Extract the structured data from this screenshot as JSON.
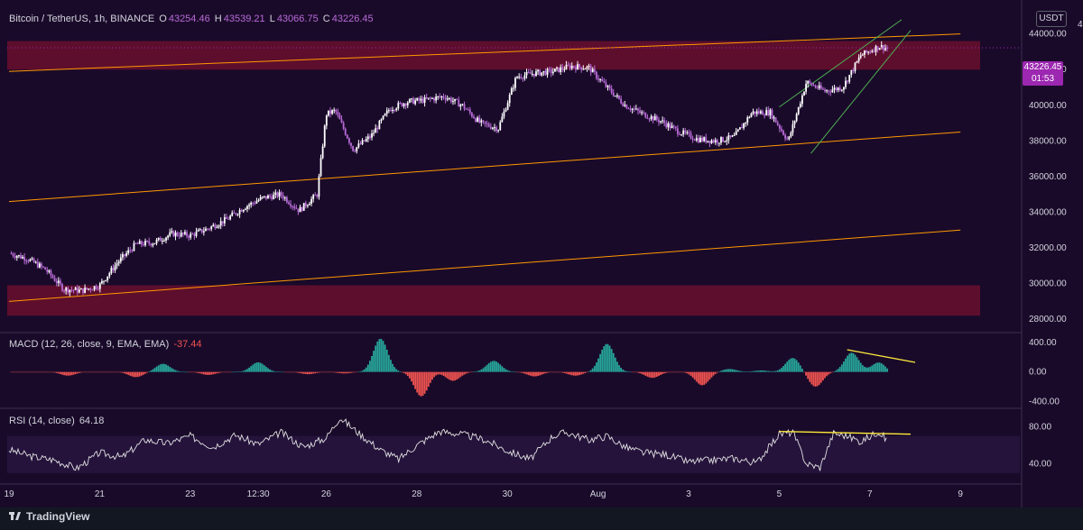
{
  "header": {
    "symbol": "Bitcoin / TetherUS, 1h, BINANCE",
    "open_label": "O",
    "open": "43254.46",
    "high_label": "H",
    "high": "43539.21",
    "low_label": "L",
    "low": "43066.75",
    "close_label": "C",
    "close": "43226.45"
  },
  "currency_button": "USDT",
  "last_price": "43226.45",
  "countdown": "01:53",
  "macd_header": {
    "label": "MACD (12, 26, close, 9, EMA, EMA)",
    "value": "-37.44"
  },
  "rsi_header": {
    "label": "RSI (14, close)",
    "value": "64.18"
  },
  "footer": {
    "brand": "TradingView"
  },
  "colors": {
    "background": "#1a0a2a",
    "candle": "#b76bd6",
    "resistance_zone": "#6b0f2e",
    "channel_line": "#ff9800",
    "wedge_line": "#4caf50",
    "macd_pos": "#26a69a",
    "macd_neg": "#ef5350",
    "divergence_line": "#ffeb3b",
    "price_box": "#9c27b0"
  },
  "chart_data": [
    {
      "type": "candlestick",
      "title": "Bitcoin / TetherUS, 1h, BINANCE",
      "y_ticks": [
        28000,
        30000,
        32000,
        34000,
        36000,
        38000,
        40000,
        42000,
        44000
      ],
      "y_tick_labels": [
        "28000.00",
        "30000.00",
        "32000.00",
        "34000.00",
        "36000.00",
        "38000.00",
        "40000.00",
        "42000.00",
        "44000.00"
      ],
      "ylim": [
        27300,
        45500
      ],
      "x_labels": [
        "19",
        "21",
        "23",
        "12:30",
        "26",
        "28",
        "30",
        "Aug",
        "3",
        "5",
        "7",
        "9"
      ],
      "x_label_pos": [
        0,
        2,
        4,
        5.5,
        7,
        9,
        11,
        13,
        15,
        17,
        19,
        21
      ],
      "close_series": {
        "t": [
          0,
          0.4,
          0.8,
          1.2,
          1.6,
          2.0,
          2.4,
          2.8,
          3.2,
          3.6,
          4.0,
          4.4,
          4.8,
          5.2,
          5.6,
          6.0,
          6.4,
          6.8,
          7.0,
          7.2,
          7.6,
          8.0,
          8.4,
          8.8,
          9.2,
          9.6,
          10.0,
          10.4,
          10.8,
          11.2,
          11.6,
          12.0,
          12.4,
          12.8,
          13.2,
          13.6,
          14.0,
          14.4,
          14.8,
          15.2,
          15.6,
          16.0,
          16.4,
          16.8,
          17.2,
          17.6,
          18.0,
          18.4,
          18.8,
          19.2,
          19.4
        ],
        "close": [
          31700,
          31400,
          30800,
          29700,
          29600,
          29900,
          31200,
          32200,
          32300,
          32800,
          32700,
          33100,
          33600,
          34300,
          34800,
          35000,
          34100,
          35000,
          39500,
          39700,
          37500,
          38300,
          39800,
          40200,
          40300,
          40500,
          40000,
          39000,
          38700,
          41600,
          41800,
          41900,
          42200,
          42100,
          41000,
          40000,
          39500,
          39100,
          38500,
          38100,
          38000,
          38200,
          39600,
          39600,
          38000,
          41300,
          40800,
          41000,
          42800,
          43300,
          43226
        ]
      },
      "resistance_zone": [
        42000,
        43600
      ],
      "support_zone": [
        28200,
        29900
      ],
      "channel_upper": [
        [
          0,
          41900
        ],
        [
          21,
          44000
        ]
      ],
      "channel_middle": [
        [
          0,
          34600
        ],
        [
          21,
          38500
        ]
      ],
      "channel_lower": [
        [
          0,
          29000
        ],
        [
          21,
          33000
        ]
      ],
      "wedge_upper": [
        [
          17.0,
          39900
        ],
        [
          19.7,
          44800
        ]
      ],
      "wedge_lower": [
        [
          17.7,
          37300
        ],
        [
          19.9,
          44200
        ]
      ],
      "last_price": 43226.45
    },
    {
      "type": "histogram",
      "title": "MACD (12, 26, close, 9, EMA, EMA)",
      "current_value": -37.44,
      "y_ticks": [
        -400,
        0,
        400
      ],
      "y_tick_labels": [
        "-400.00",
        "0.00",
        "400.00"
      ],
      "ylim": [
        -480,
        520
      ],
      "peaks_t": [
        1.3,
        2.8,
        3.4,
        4.4,
        5.5,
        6.6,
        7.4,
        8.2,
        9.1,
        9.8,
        10.7,
        11.6,
        12.5,
        13.2,
        14.2,
        15.3,
        15.9,
        16.6,
        17.3,
        17.8,
        18.6,
        19.2,
        19.6
      ],
      "peaks_v": [
        -50,
        -70,
        110,
        -40,
        130,
        -30,
        -20,
        450,
        -330,
        -120,
        150,
        -60,
        -50,
        380,
        -80,
        -180,
        40,
        20,
        190,
        -200,
        260,
        130,
        -50
      ],
      "divergence_line": [
        [
          18.5,
          300
        ],
        [
          20.0,
          130
        ]
      ]
    },
    {
      "type": "line",
      "title": "RSI (14, close)",
      "current_value": 64.18,
      "y_ticks": [
        40,
        80
      ],
      "y_tick_labels": [
        "40.00",
        "80.00"
      ],
      "ylim": [
        22,
        99
      ],
      "band": [
        30,
        70
      ],
      "t": [
        0,
        0.5,
        1.0,
        1.5,
        2.0,
        2.5,
        3.0,
        3.5,
        4.0,
        4.5,
        5.0,
        5.5,
        6.0,
        6.5,
        7.0,
        7.3,
        7.8,
        8.2,
        8.6,
        9.0,
        9.5,
        10.0,
        10.5,
        11.0,
        11.5,
        12.0,
        12.3,
        12.8,
        13.2,
        13.6,
        14.0,
        14.5,
        15.0,
        15.5,
        16.0,
        16.5,
        17.0,
        17.3,
        17.6,
        17.9,
        18.2,
        18.5,
        18.8,
        19.2,
        19.4
      ],
      "values": [
        55,
        48,
        44,
        35,
        52,
        47,
        66,
        62,
        70,
        58,
        71,
        61,
        74,
        58,
        68,
        90,
        70,
        55,
        45,
        60,
        75,
        72,
        66,
        54,
        45,
        70,
        74,
        66,
        70,
        58,
        52,
        50,
        42,
        44,
        46,
        41,
        72,
        74,
        40,
        36,
        73,
        70,
        64,
        75,
        64
      ],
      "divergence_line": [
        [
          17.0,
          75
        ],
        [
          19.9,
          72
        ]
      ]
    }
  ]
}
